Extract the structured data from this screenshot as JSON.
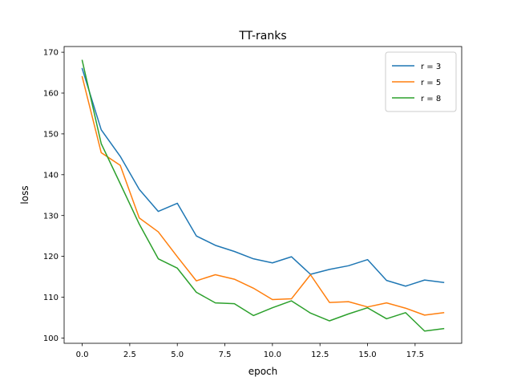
{
  "chart_data": {
    "type": "line",
    "title": "TT-ranks",
    "xlabel": "epoch",
    "ylabel": "loss",
    "xlim": [
      -0.95,
      19.95
    ],
    "ylim": [
      98.7,
      171.4
    ],
    "xticks": [
      0.0,
      2.5,
      5.0,
      7.5,
      10.0,
      12.5,
      15.0,
      17.5
    ],
    "xtick_labels": [
      "0.0",
      "2.5",
      "5.0",
      "7.5",
      "10.0",
      "12.5",
      "15.0",
      "17.5"
    ],
    "yticks": [
      100,
      110,
      120,
      130,
      140,
      150,
      160,
      170
    ],
    "ytick_labels": [
      "100",
      "110",
      "120",
      "130",
      "140",
      "150",
      "160",
      "170"
    ],
    "grid": false,
    "legend": "top-right",
    "x": [
      0,
      1,
      2,
      3,
      4,
      5,
      6,
      7,
      8,
      9,
      10,
      11,
      12,
      13,
      14,
      15,
      16,
      17,
      18,
      19
    ],
    "series": [
      {
        "name": "r = 3",
        "color": "#1f77b4",
        "values": [
          166.0,
          151.0,
          144.5,
          136.4,
          131.0,
          133.0,
          125.0,
          122.7,
          121.2,
          119.4,
          118.4,
          119.9,
          115.6,
          116.8,
          117.7,
          119.2,
          114.1,
          112.7,
          114.2,
          113.6
        ]
      },
      {
        "name": "r = 5",
        "color": "#ff7f0e",
        "values": [
          164.0,
          145.4,
          142.3,
          129.4,
          126.0,
          119.9,
          114.0,
          115.5,
          114.4,
          112.2,
          109.4,
          109.6,
          115.5,
          108.7,
          108.9,
          107.6,
          108.6,
          107.3,
          105.6,
          106.2
        ]
      },
      {
        "name": "r = 8",
        "color": "#2ca02c",
        "values": [
          168.0,
          147.6,
          137.8,
          127.9,
          119.4,
          117.1,
          111.2,
          108.6,
          108.4,
          105.5,
          107.4,
          109.1,
          106.1,
          104.2,
          105.9,
          107.4,
          104.7,
          106.2,
          101.7,
          102.3
        ]
      }
    ]
  }
}
